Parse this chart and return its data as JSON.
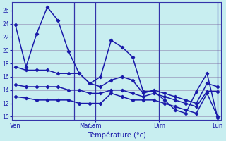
{
  "xlabel": "Température (°c)",
  "background_color": "#c8eef0",
  "grid_color": "#9999bb",
  "line_color": "#1a1aaa",
  "ylim": [
    9.5,
    27.2
  ],
  "yticks": [
    10,
    12,
    14,
    16,
    18,
    20,
    22,
    24,
    26
  ],
  "xlim": [
    -0.3,
    19.3
  ],
  "day_vlines": [
    5.5,
    7.5,
    13.5,
    19.0
  ],
  "xtick_positions": [
    0,
    6.5,
    7.5,
    13.5,
    19.0
  ],
  "xtick_labels": [
    "Ven",
    "Mar",
    "Sam",
    "Dim",
    "Lun"
  ],
  "series": [
    [
      23.8,
      17.5,
      22.5,
      26.5,
      24.5,
      19.8,
      16.5,
      15.0,
      16.0,
      21.5,
      20.5,
      19.0,
      13.8,
      13.8,
      12.5,
      11.0,
      10.5,
      13.8,
      16.5,
      9.8
    ],
    [
      17.5,
      17.0,
      17.0,
      17.0,
      16.5,
      16.5,
      16.5,
      15.0,
      14.5,
      15.5,
      16.0,
      15.5,
      13.5,
      14.0,
      13.5,
      13.0,
      12.5,
      12.0,
      15.0,
      14.5
    ],
    [
      14.8,
      14.5,
      14.5,
      14.5,
      14.5,
      14.0,
      14.0,
      13.5,
      13.5,
      14.0,
      14.0,
      13.5,
      13.0,
      13.5,
      13.0,
      12.5,
      12.0,
      11.5,
      13.8,
      13.8
    ],
    [
      13.0,
      12.8,
      12.5,
      12.5,
      12.5,
      12.5,
      12.0,
      12.0,
      12.0,
      13.5,
      13.0,
      12.5,
      12.5,
      12.5,
      12.0,
      11.5,
      11.0,
      10.5,
      13.5,
      10.0
    ]
  ]
}
